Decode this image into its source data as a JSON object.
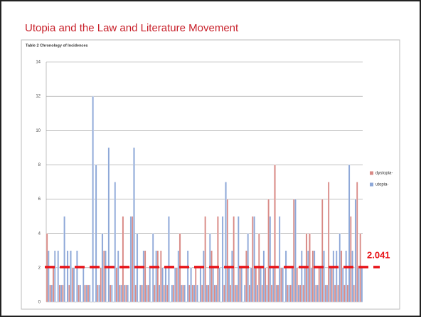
{
  "title": "Utopia and the Law and Literature Movement",
  "chart_data": {
    "type": "bar",
    "title": "Table 2 Chronology of Incidences",
    "categories": [
      null,
      null,
      null,
      null,
      null,
      null,
      null,
      null,
      null,
      null,
      null,
      null,
      null,
      null,
      null,
      null,
      null,
      null,
      null,
      null,
      null,
      null,
      null,
      null,
      null,
      null,
      null,
      null,
      null,
      null,
      null,
      null,
      null,
      null,
      null,
      null,
      null,
      null,
      null,
      null,
      null,
      null,
      null,
      null,
      null,
      null,
      null,
      null,
      null,
      null,
      null,
      null,
      null,
      null,
      null,
      null,
      null,
      null,
      null,
      null,
      null,
      null,
      null,
      null,
      null,
      null,
      null,
      null,
      null,
      null,
      null,
      null,
      null,
      null,
      null,
      null,
      null,
      null,
      null,
      null,
      null,
      null,
      null,
      null,
      null,
      null,
      null,
      null,
      null,
      null,
      null,
      null,
      null,
      null,
      null,
      null,
      null,
      null,
      null,
      null
    ],
    "series": [
      {
        "name": "dystopia-",
        "color": "#d98a86",
        "values": [
          4,
          1,
          2,
          0,
          1,
          1,
          0,
          1,
          2,
          0,
          1,
          0,
          1,
          1,
          0,
          0,
          1,
          2,
          3,
          0,
          1,
          0,
          2,
          1,
          5,
          1,
          0,
          5,
          1,
          0,
          1,
          3,
          1,
          0,
          1,
          3,
          3,
          1,
          1,
          0,
          1,
          2,
          4,
          1,
          0,
          1,
          1,
          2,
          0,
          1,
          5,
          1,
          3,
          1,
          5,
          0,
          1,
          6,
          1,
          5,
          1,
          2,
          0,
          3,
          1,
          5,
          2,
          4,
          1,
          2,
          6,
          1,
          8,
          1,
          2,
          0,
          1,
          1,
          6,
          2,
          1,
          1,
          4,
          4,
          3,
          1,
          2,
          6,
          1,
          7,
          2,
          1,
          1,
          3,
          1,
          1,
          5,
          1,
          7,
          4
        ]
      },
      {
        "name": "utopia-",
        "color": "#8ea8d8",
        "values": [
          3,
          1,
          3,
          3,
          1,
          5,
          3,
          3,
          2,
          3,
          1,
          2,
          1,
          1,
          12,
          8,
          1,
          4,
          3,
          9,
          1,
          7,
          3,
          1,
          1,
          1,
          5,
          9,
          4,
          1,
          3,
          1,
          2,
          4,
          3,
          1,
          2,
          2,
          5,
          1,
          2,
          3,
          1,
          1,
          3,
          2,
          1,
          1,
          2,
          3,
          1,
          4,
          2,
          1,
          2,
          5,
          7,
          2,
          3,
          1,
          5,
          2,
          1,
          4,
          2,
          5,
          1,
          2,
          3,
          1,
          5,
          2,
          1,
          5,
          2,
          3,
          1,
          2,
          6,
          1,
          3,
          2,
          3,
          2,
          3,
          1,
          2,
          3,
          1,
          2,
          3,
          3,
          4,
          2,
          3,
          8,
          3,
          6,
          2,
          2
        ]
      }
    ],
    "ylim": [
      0,
      14
    ],
    "yticks": [
      0,
      2,
      4,
      6,
      8,
      10,
      12,
      14
    ],
    "grid": true,
    "legend": "right",
    "reference_line": 2.041,
    "reference_color": "#e8161b"
  }
}
